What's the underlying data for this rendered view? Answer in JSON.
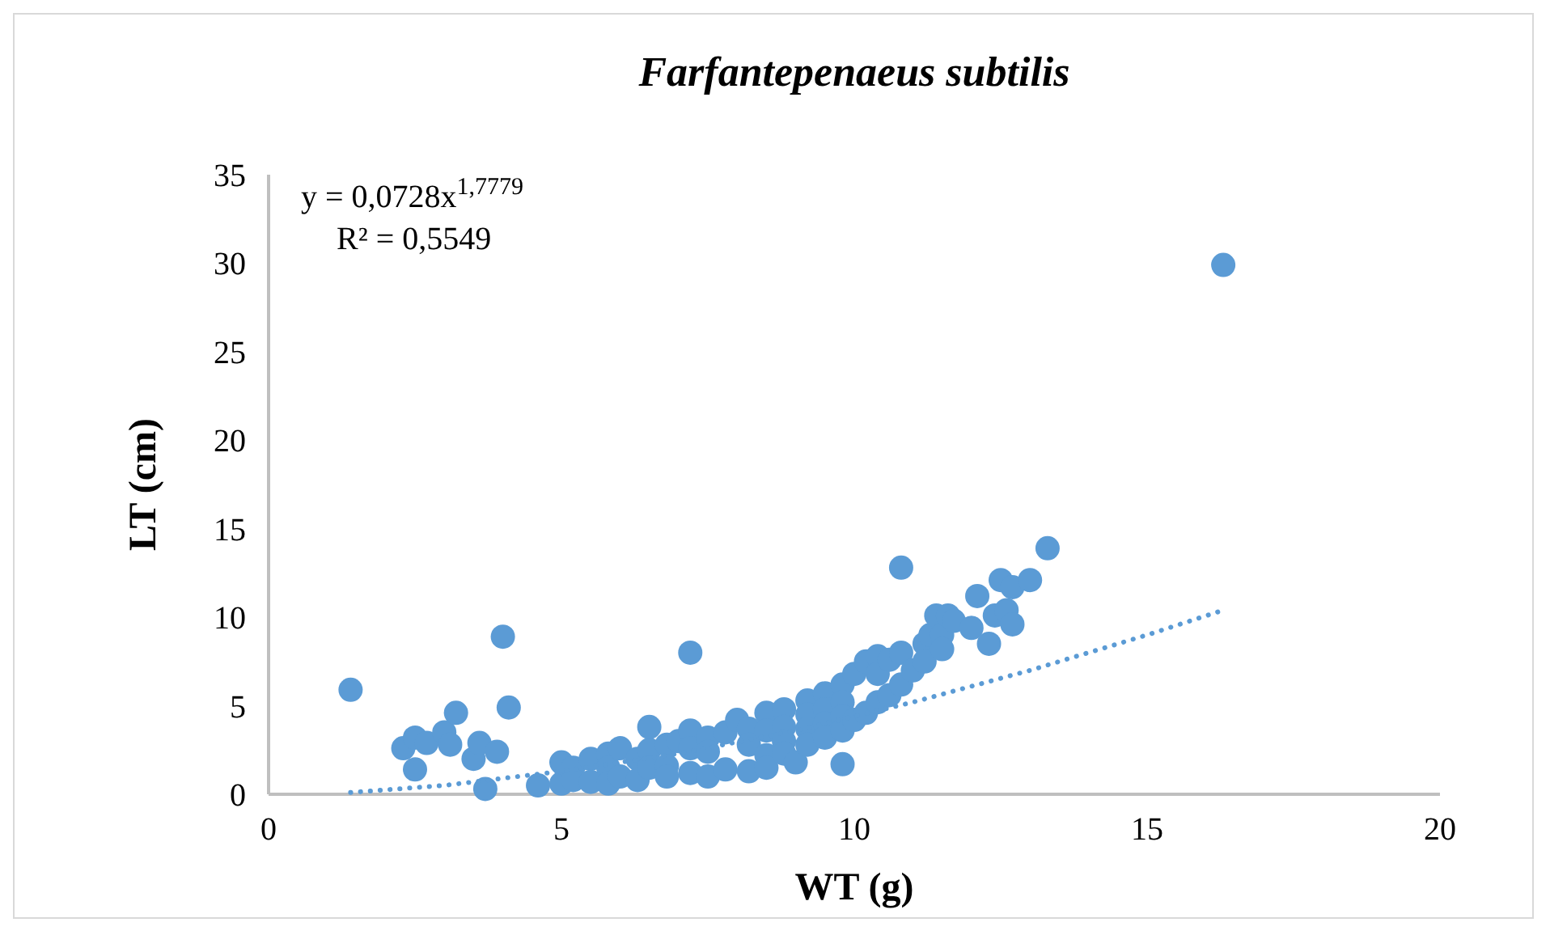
{
  "chart_data": {
    "type": "scatter",
    "title": "Farfantepenaeus subtilis",
    "xlabel": "WT (g)",
    "ylabel": "LT (cm)",
    "xlim": [
      0,
      20
    ],
    "xticks": [
      0,
      5,
      10,
      15,
      20
    ],
    "ylim": [
      0,
      35
    ],
    "yticks": [
      0,
      5,
      10,
      15,
      20,
      25,
      30,
      35
    ],
    "grid": false,
    "marker": "circle",
    "annotations": [
      "y = 0,0728x$^{1,7779}$",
      "R² = 0,5549"
    ],
    "series": [
      {
        "color": "#5b9bd5",
        "x": [
          1.4,
          2.3,
          2.5,
          2.5,
          2.7,
          3.0,
          3.1,
          3.2,
          3.5,
          3.6,
          3.7,
          3.9,
          4.0,
          4.1,
          4.6,
          5.0,
          5.0,
          5.2,
          5.2,
          5.5,
          5.5,
          5.8,
          5.8,
          5.8,
          6.0,
          6.0,
          6.3,
          6.3,
          6.5,
          6.5,
          6.5,
          6.8,
          6.8,
          6.8,
          7.0,
          7.2,
          7.2,
          7.2,
          7.2,
          7.5,
          7.5,
          7.5,
          7.8,
          7.8,
          8.0,
          8.2,
          8.2,
          8.2,
          8.5,
          8.5,
          8.5,
          8.5,
          8.8,
          8.8,
          8.8,
          8.8,
          9.0,
          9.2,
          9.2,
          9.2,
          9.2,
          9.5,
          9.5,
          9.5,
          9.5,
          9.8,
          9.8,
          9.8,
          9.8,
          9.8,
          10.0,
          10.0,
          10.2,
          10.2,
          10.4,
          10.4,
          10.4,
          10.6,
          10.6,
          10.8,
          10.8,
          10.8,
          11.0,
          11.2,
          11.2,
          11.3,
          11.4,
          11.5,
          11.5,
          11.6,
          11.7,
          12.0,
          12.1,
          12.3,
          12.4,
          12.5,
          12.6,
          12.7,
          12.7,
          13.0,
          13.3,
          16.3
        ],
        "values": [
          5.9,
          2.6,
          3.2,
          1.4,
          2.9,
          3.5,
          2.8,
          4.6,
          2.0,
          2.9,
          0.3,
          2.4,
          8.9,
          4.9,
          0.5,
          0.6,
          1.8,
          1.5,
          0.8,
          2.0,
          0.7,
          2.3,
          1.5,
          0.6,
          2.6,
          1.0,
          2.0,
          0.8,
          3.8,
          2.5,
          1.5,
          2.8,
          1.6,
          1.0,
          3.0,
          8.0,
          3.6,
          2.6,
          1.2,
          3.2,
          2.4,
          1.0,
          3.5,
          1.4,
          4.2,
          3.7,
          2.8,
          1.3,
          4.6,
          3.6,
          2.2,
          1.5,
          4.8,
          3.8,
          3.0,
          2.3,
          1.8,
          5.3,
          4.5,
          3.7,
          2.8,
          5.7,
          4.8,
          4.0,
          3.2,
          6.2,
          5.2,
          4.4,
          3.6,
          1.7,
          6.8,
          4.2,
          7.5,
          4.6,
          7.8,
          6.8,
          5.2,
          7.6,
          5.6,
          12.8,
          8.0,
          6.2,
          7.0,
          8.5,
          7.5,
          9.0,
          10.1,
          9.0,
          8.2,
          10.1,
          9.8,
          9.4,
          11.2,
          8.5,
          10.1,
          12.1,
          10.4,
          11.7,
          9.6,
          12.1,
          13.9,
          29.9
        ]
      },
      {
        "type": "line",
        "color": "#5b9bd5",
        "marker": "none",
        "line_style": "dotted",
        "x": [
          1.4,
          3,
          5,
          7,
          9,
          11,
          13,
          15,
          16.3
        ],
        "values": [
          0.1,
          0.5,
          1.3,
          2.3,
          3.6,
          5.2,
          7.0,
          9.0,
          10.4
        ]
      }
    ]
  }
}
